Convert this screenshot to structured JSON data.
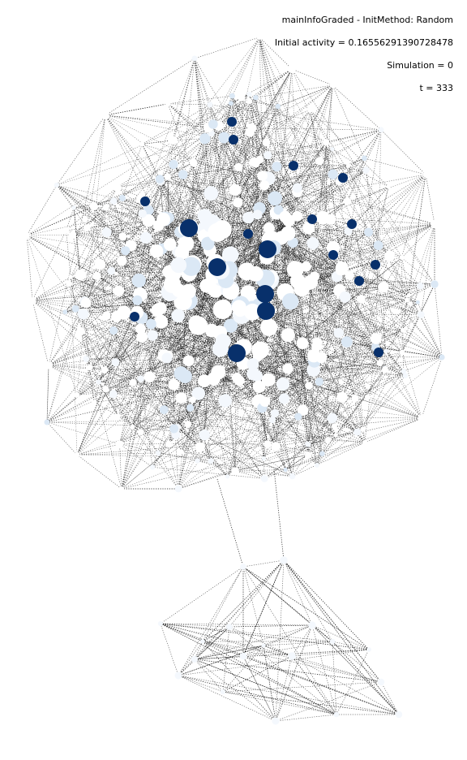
{
  "annotations": {
    "title": "mainInfoGraded - InitMethod: Random",
    "initial_activity": "Initial activity = 0.16556291390728478",
    "simulation": "Simulation = 0",
    "time": "t = 333"
  },
  "colors": {
    "active": "#08306b",
    "inactive": "#ffffff",
    "low": "#f4f8fd",
    "mid": "#dbe8f5",
    "edge": "#000000",
    "background": "#ffffff"
  },
  "graph": {
    "description_layout": "two clusters joined by two long edges",
    "edge_style": "dotted"
  }
}
